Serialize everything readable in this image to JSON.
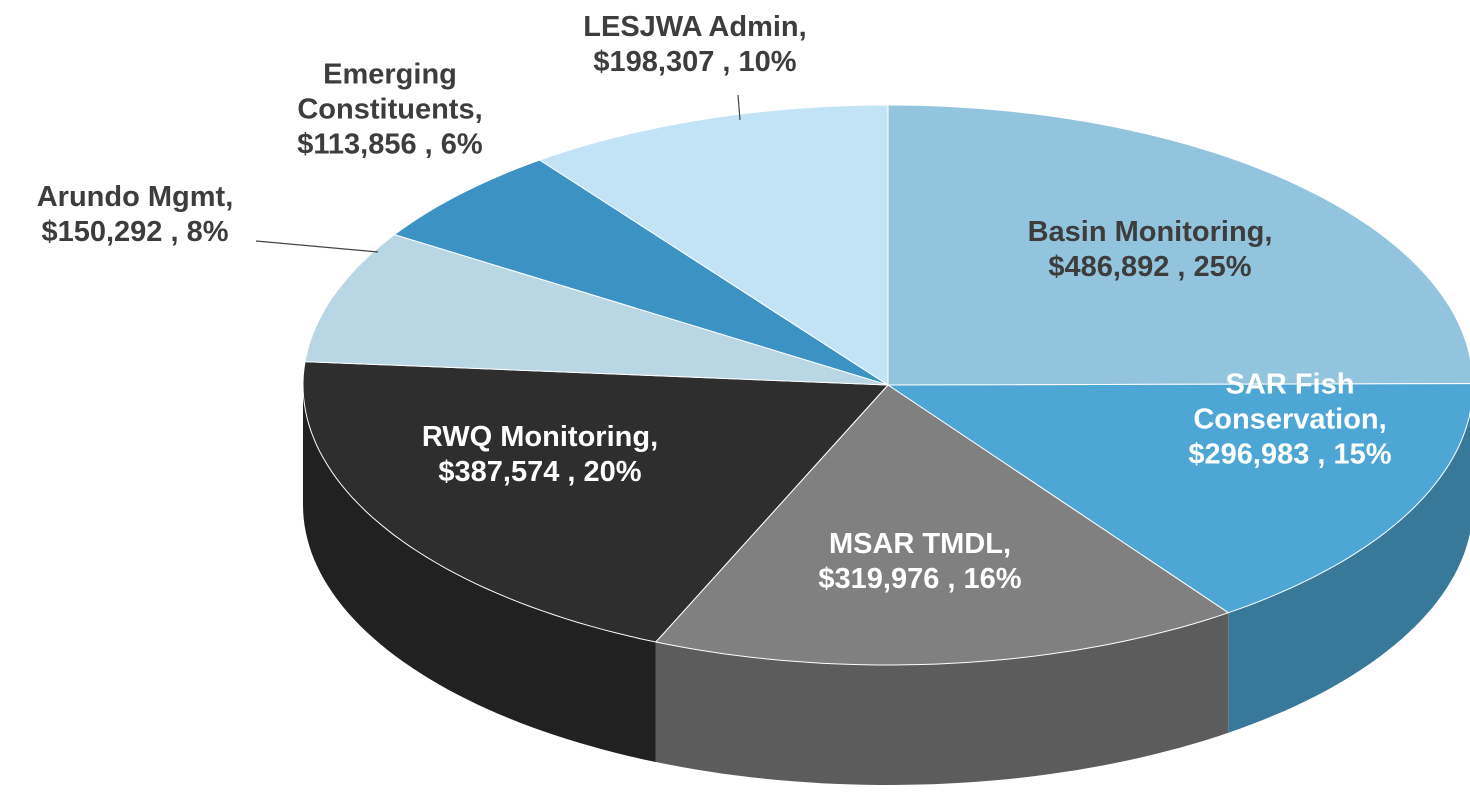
{
  "chart_data": {
    "type": "pie",
    "categories": [
      "Basin Monitoring,",
      "SAR Fish Conservation,",
      "MSAR TMDL,",
      "RWQ Monitoring,",
      "Arundo Mgmt,",
      "Emerging Constituents,",
      "LESJWA Admin,"
    ],
    "values": [
      486892,
      296983,
      319976,
      387574,
      150292,
      113856,
      198307
    ],
    "value_labels": [
      "$486,892 , 25%",
      "$296,983 , 15%",
      "$319,976 , 16%",
      "$387,574 , 20%",
      "$150,292 , 8%",
      "$113,856 , 6%",
      "$198,307 , 10%"
    ],
    "colors": [
      "#93c4de",
      "#4ea6d4",
      "#808080",
      "#2e2e2e",
      "#b9d6e4",
      "#3c92c2",
      "#c2e3f5"
    ],
    "label_colors": [
      "#3d3d3d",
      "#ffffff",
      "#ffffff",
      "#ffffff",
      "#3d3d3d",
      "#3d3d3d",
      "#3d3d3d"
    ]
  }
}
